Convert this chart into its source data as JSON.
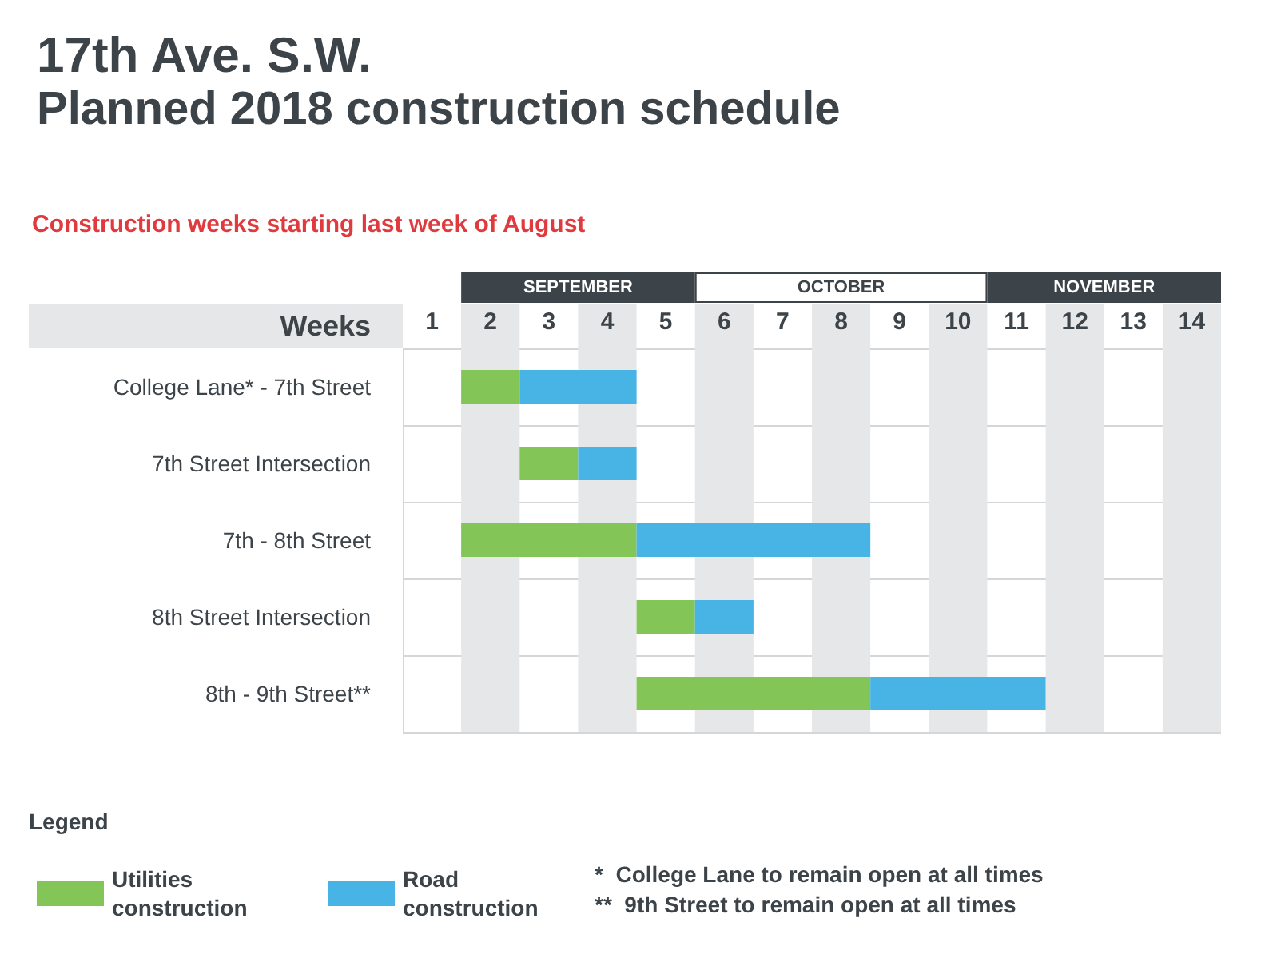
{
  "chart_data": {
    "type": "bar",
    "orientation": "horizontal",
    "title": "17th Ave. S.W.",
    "subtitle": "Planned 2018 construction schedule",
    "ylabel": "Weeks",
    "annotations": [
      "Construction weeks starting last week of August",
      "*  College Lane to remain open at all times",
      "**  9th Street to remain open at all times",
      "SEPTEMBER",
      "OCTOBER",
      "NOVEMBER"
    ],
    "legend_title": "Legend",
    "categories": [
      "College Lane* - 7th Street",
      "7th Street Intersection",
      "7th - 8th Street",
      "8th Street Intersection",
      "8th - 9th Street**"
    ],
    "series": [
      {
        "name": "Utilities construction",
        "color": "#84c557",
        "base": [
          1,
          2,
          1,
          4,
          4
        ],
        "values": [
          1,
          1,
          3,
          1,
          4
        ]
      },
      {
        "name": "Road construction",
        "color": "#48b4e6",
        "base": [
          2,
          3,
          4,
          5,
          8
        ],
        "values": [
          2,
          1,
          4,
          1,
          3
        ]
      }
    ],
    "xlim": [
      0,
      14
    ],
    "xticks": [
      {
        "value": 0.5,
        "label": "1"
      },
      {
        "value": 1.5,
        "label": "2"
      },
      {
        "value": 2.5,
        "label": "3"
      },
      {
        "value": 3.5,
        "label": "4"
      },
      {
        "value": 4.5,
        "label": "5"
      },
      {
        "value": 5.5,
        "label": "6"
      },
      {
        "value": 6.5,
        "label": "7"
      },
      {
        "value": 7.5,
        "label": "8"
      },
      {
        "value": 8.5,
        "label": "9"
      },
      {
        "value": 9.5,
        "label": "10"
      },
      {
        "value": 10.5,
        "label": "11"
      },
      {
        "value": 11.5,
        "label": "12"
      },
      {
        "value": 12.5,
        "label": "13"
      },
      {
        "value": 13.5,
        "label": "14"
      }
    ],
    "bands": [
      {
        "axis": "x",
        "from": 1,
        "to": 2,
        "color": "#e6e7e8"
      },
      {
        "axis": "x",
        "from": 3,
        "to": 4,
        "color": "#e6e7e8"
      },
      {
        "axis": "x",
        "from": 5,
        "to": 6,
        "color": "#e6e7e8"
      },
      {
        "axis": "x",
        "from": 7,
        "to": 8,
        "color": "#e6e7e8"
      },
      {
        "axis": "x",
        "from": 9,
        "to": 10,
        "color": "#e6e7e8"
      },
      {
        "axis": "x",
        "from": 11,
        "to": 12,
        "color": "#e6e7e8"
      },
      {
        "axis": "x",
        "from": 13,
        "to": 14,
        "color": "#e6e7e8"
      }
    ],
    "grid": "y",
    "legend": "bottom left"
  }
}
